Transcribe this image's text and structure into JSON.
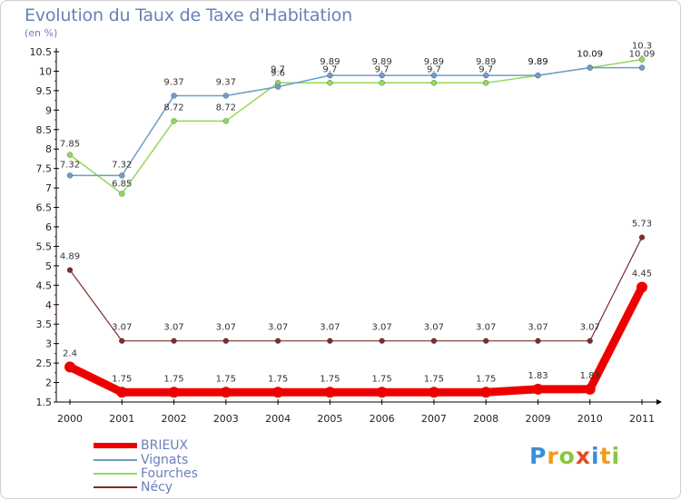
{
  "title": "Evolution du Taux de Taxe d'Habitation",
  "subtitle": "(en %)",
  "logo": {
    "letters": [
      "P",
      "r",
      "o",
      "x",
      "i",
      "t",
      "i"
    ],
    "colors": [
      "#3b8ed8",
      "#f29a1e",
      "#8ac53f",
      "#e74b1c",
      "#3b8ed8",
      "#f29a1e",
      "#8ac53f"
    ]
  },
  "chart_data": {
    "type": "line",
    "x": [
      "2000",
      "2001",
      "2002",
      "2003",
      "2004",
      "2005",
      "2006",
      "2007",
      "2008",
      "2009",
      "2010",
      "2011"
    ],
    "ylim": [
      1.5,
      10.5
    ],
    "yticks": [
      "1.5",
      "2",
      "2.5",
      "3",
      "3.5",
      "4",
      "4.5",
      "5",
      "5.5",
      "6",
      "6.5",
      "7",
      "7.5",
      "8",
      "8.5",
      "9",
      "9.5",
      "10",
      "10.5"
    ],
    "grid": false,
    "legend_position": "bottom-left",
    "series": [
      {
        "name": "BRIEUX",
        "color": "#ee0000",
        "values": [
          2.4,
          1.75,
          1.75,
          1.75,
          1.75,
          1.75,
          1.75,
          1.75,
          1.75,
          1.83,
          1.83,
          4.45
        ],
        "labels": [
          "2.4",
          "1.75",
          "1.75",
          "1.75",
          "1.75",
          "1.75",
          "1.75",
          "1.75",
          "1.75",
          "1.83",
          "1.83",
          "4.45"
        ]
      },
      {
        "name": "Vignats",
        "color": "#6e9ccc",
        "values": [
          7.32,
          7.32,
          9.37,
          9.37,
          9.6,
          9.89,
          9.89,
          9.89,
          9.89,
          9.89,
          10.09,
          10.09
        ],
        "labels": [
          "7.32",
          "7.32",
          "9.37",
          "9.37",
          "9.6",
          "9.89",
          "9.89",
          "9.89",
          "9.89",
          "9.89",
          "10.09",
          "10.09"
        ]
      },
      {
        "name": "Fourches",
        "color": "#93d85b",
        "values": [
          7.85,
          6.85,
          8.72,
          8.72,
          9.7,
          9.7,
          9.7,
          9.7,
          9.7,
          9.89,
          10.09,
          10.3
        ],
        "labels": [
          "7.85",
          "6.85",
          "8.72",
          "8.72",
          "9.7",
          "9.7",
          "9.7",
          "9.7",
          "9.7",
          "9.89",
          "10.09",
          "10.3"
        ]
      },
      {
        "name": "Nécy",
        "color": "#7a2e2e",
        "values": [
          4.89,
          3.07,
          3.07,
          3.07,
          3.07,
          3.07,
          3.07,
          3.07,
          3.07,
          3.07,
          3.07,
          5.73
        ],
        "labels": [
          "4.89",
          "3.07",
          "3.07",
          "3.07",
          "3.07",
          "3.07",
          "3.07",
          "3.07",
          "3.07",
          "3.07",
          "3.07",
          "5.73"
        ]
      }
    ]
  }
}
